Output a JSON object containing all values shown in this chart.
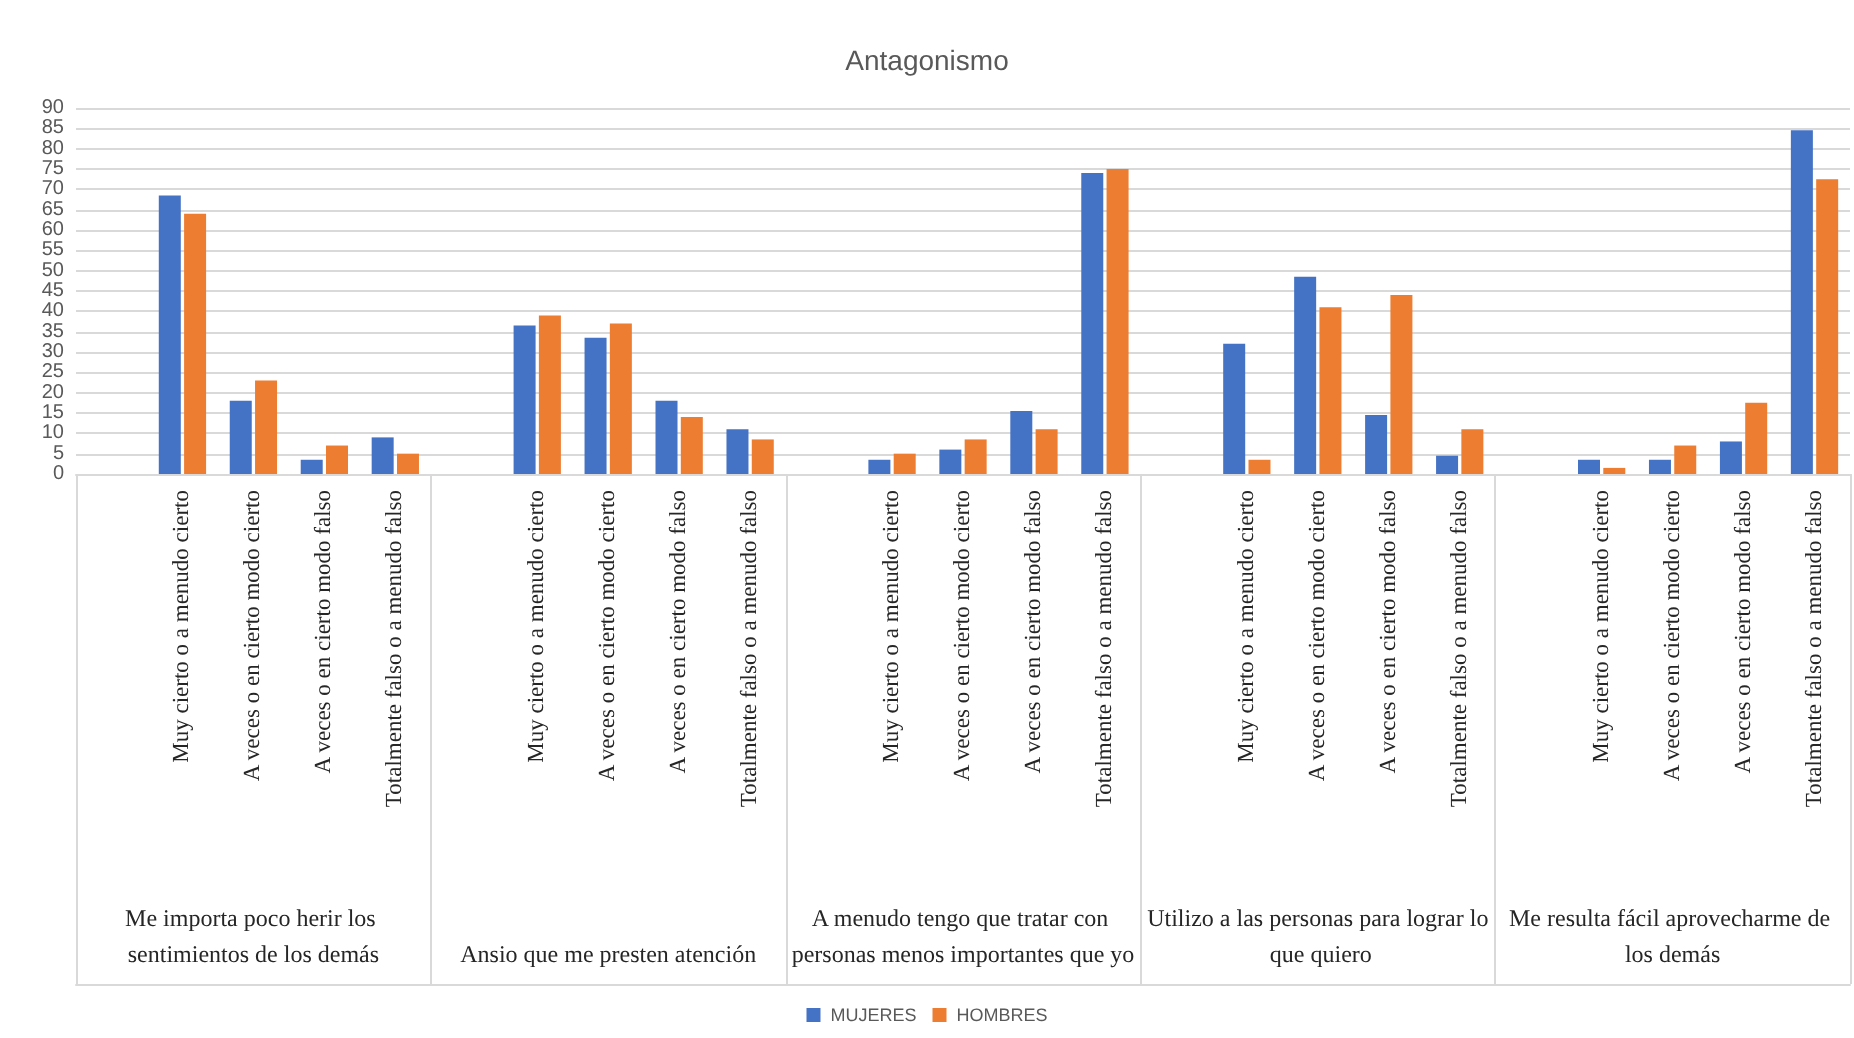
{
  "chart_data": {
    "type": "bar",
    "title": "Antagonismo",
    "categories": [
      null,
      "Muy cierto o a menudo cierto",
      "A veces o en cierto modo cierto",
      "A veces o en cierto modo falso",
      "Totalmente falso o a menudo falso",
      null,
      "Muy cierto o a menudo cierto",
      "A veces o en cierto modo cierto",
      "A veces o en cierto modo falso",
      "Totalmente falso o a menudo falso",
      null,
      "Muy cierto o a menudo cierto",
      "A veces o en cierto modo cierto",
      "A veces o en cierto modo falso",
      "Totalmente falso o a menudo falso",
      null,
      "Muy cierto o a menudo cierto",
      "A veces o en cierto modo cierto",
      "A veces o en cierto modo falso",
      "Totalmente falso o a menudo falso",
      null,
      "Muy cierto o a menudo cierto",
      "A veces o en cierto modo cierto",
      "A veces o en cierto modo falso",
      "Totalmente falso o a menudo falso"
    ],
    "series": [
      {
        "name": "MUJERES",
        "color": "#4472c4",
        "values": [
          null,
          68.5,
          18,
          3.5,
          9,
          null,
          36.5,
          33.5,
          18,
          11,
          null,
          3.5,
          6,
          15.5,
          74,
          null,
          32,
          48.5,
          14.5,
          4.5,
          null,
          3.5,
          3.5,
          8,
          84.5
        ]
      },
      {
        "name": "HOMBRES",
        "color": "#ed7d31",
        "values": [
          null,
          64,
          23,
          7,
          5,
          null,
          39,
          37,
          14,
          8.5,
          null,
          5,
          8.5,
          11,
          75,
          null,
          3.5,
          41,
          44,
          11,
          null,
          1.5,
          7,
          17.5,
          72.5
        ]
      }
    ],
    "annotations": [
      "Me importa poco herir los sentimientos de los demás",
      "Ansio que me presten atención",
      "A menudo tengo que tratar con personas menos importantes que yo",
      "Utilizo a las personas para lograr lo que quiero",
      "Me resulta fácil aprovecharme de los demás"
    ],
    "ylim": [
      0,
      90
    ],
    "yticks": [
      0,
      5,
      10,
      15,
      20,
      25,
      30,
      35,
      40,
      45,
      50,
      55,
      60,
      65,
      70,
      75,
      80,
      85,
      90
    ],
    "grid": "y",
    "legend": "bottom"
  }
}
